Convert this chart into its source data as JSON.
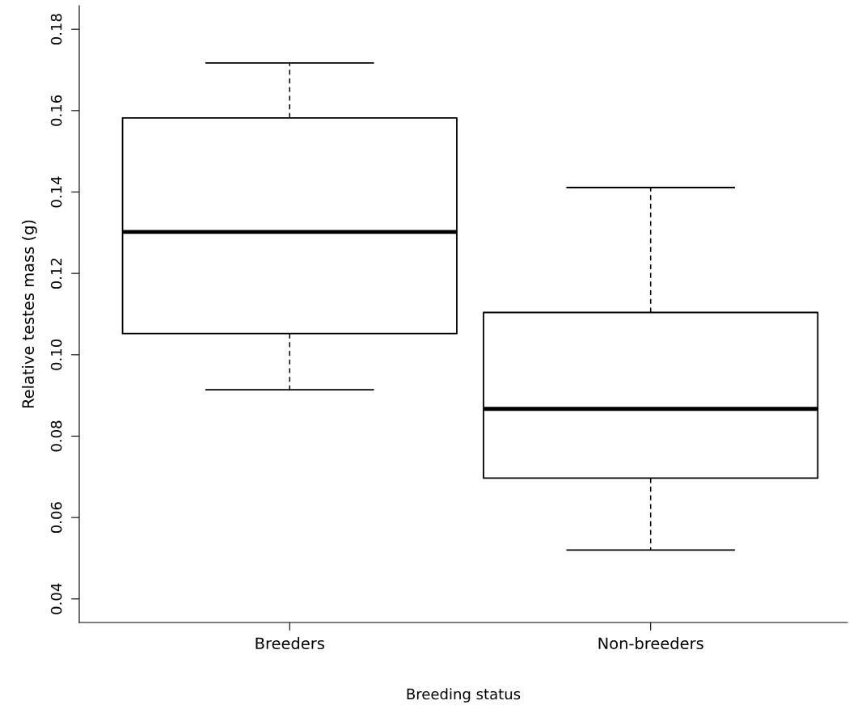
{
  "chart_data": {
    "type": "box",
    "xlabel": "Breeding status",
    "ylabel": "Relative testes mass (g)",
    "categories": [
      "Breeders",
      "Non-breeders"
    ],
    "boxes": [
      {
        "low": 0.0914,
        "q1": 0.1052,
        "median": 0.1302,
        "q3": 0.1582,
        "high": 0.1717
      },
      {
        "low": 0.052,
        "q1": 0.0697,
        "median": 0.0867,
        "q3": 0.1104,
        "high": 0.1411
      }
    ],
    "color": "#000000",
    "ylim": [
      0.0342,
      0.1858
    ],
    "yticks": [
      {
        "value": 0.04,
        "label": "0.04"
      },
      {
        "value": 0.06,
        "label": "0.06"
      },
      {
        "value": 0.08,
        "label": "0.08"
      },
      {
        "value": 0.1,
        "label": "0.10"
      },
      {
        "value": 0.12,
        "label": "0.12"
      },
      {
        "value": 0.14,
        "label": "0.14"
      },
      {
        "value": 0.16,
        "label": "0.16"
      },
      {
        "value": 0.18,
        "label": "0.18"
      }
    ],
    "grid": false
  }
}
